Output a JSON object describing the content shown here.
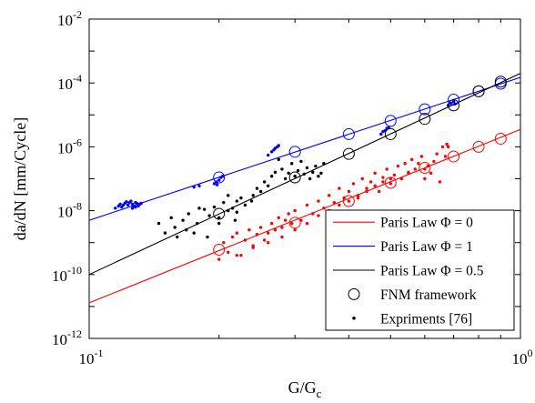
{
  "chart_data": {
    "type": "scatter",
    "xscale": "log",
    "yscale": "log",
    "xlim": [
      0.1,
      1
    ],
    "ylim": [
      1e-12,
      0.01
    ],
    "xlabel": {
      "main": "G/G",
      "sub": "c"
    },
    "ylabel": "da/dN [mm/Cycle]",
    "x_ticks": [
      {
        "value": 0.1,
        "base": "10",
        "exp": "-1"
      },
      {
        "value": 1,
        "base": "10",
        "exp": "0"
      }
    ],
    "y_ticks": [
      {
        "value": 1e-12,
        "base": "10",
        "exp": "-12"
      },
      {
        "value": 1e-10,
        "base": "10",
        "exp": "-10"
      },
      {
        "value": 1e-08,
        "base": "10",
        "exp": "-8"
      },
      {
        "value": 1e-06,
        "base": "10",
        "exp": "-6"
      },
      {
        "value": 0.0001,
        "base": "10",
        "exp": "-4"
      },
      {
        "value": 0.01,
        "base": "10",
        "exp": "-2"
      }
    ],
    "grid": false,
    "legend_position": "bottom-right",
    "colors": {
      "red": "#ff0000",
      "blue": "#0000ff",
      "black": "#000000"
    },
    "lines": [
      {
        "name": "Paris Law Φ = 0",
        "color": "#ff0000",
        "x": [
          0.1,
          1
        ],
        "y": [
          1.3e-11,
          3.5e-06
        ]
      },
      {
        "name": "Paris Law Φ = 1",
        "color": "#0000ff",
        "x": [
          0.1,
          1
        ],
        "y": [
          5e-09,
          0.00015
        ]
      },
      {
        "name": "Paris Law Φ = 0.5",
        "color": "#000000",
        "x": [
          0.1,
          1
        ],
        "y": [
          1e-10,
          0.0002
        ]
      }
    ],
    "fnm_points": [
      {
        "color": "#ff0000",
        "x": [
          0.2,
          0.3,
          0.4,
          0.5,
          0.6,
          0.7,
          0.8,
          0.9
        ],
        "y": [
          6e-10,
          4.2e-09,
          2e-08,
          7.5e-08,
          2.2e-07,
          5e-07,
          1e-06,
          1.8e-06
        ]
      },
      {
        "color": "#0000ff",
        "x": [
          0.2,
          0.3,
          0.4,
          0.5,
          0.6,
          0.7,
          0.8,
          0.9
        ],
        "y": [
          1.1e-07,
          7e-07,
          2.5e-06,
          6.5e-06,
          1.5e-05,
          3e-05,
          5.5e-05,
          9.5e-05
        ]
      },
      {
        "color": "#000000",
        "x": [
          0.2,
          0.3,
          0.4,
          0.5,
          0.6,
          0.7,
          0.8,
          0.9
        ],
        "y": [
          8e-09,
          1.1e-07,
          6e-07,
          2.5e-06,
          7.5e-06,
          2e-05,
          5.5e-05,
          0.00011
        ]
      }
    ],
    "experiment_points": [
      {
        "color": "#0000ff",
        "x": [
          0.115,
          0.117,
          0.118,
          0.12,
          0.121,
          0.122,
          0.124,
          0.125,
          0.126,
          0.127,
          0.128,
          0.129,
          0.13,
          0.131,
          0.132,
          0.126,
          0.128,
          0.13,
          0.123,
          0.119,
          0.175,
          0.18,
          0.195,
          0.197,
          0.2,
          0.202,
          0.204,
          0.198,
          0.265,
          0.268,
          0.27,
          0.273,
          0.275,
          0.26,
          0.475,
          0.48,
          0.485,
          0.49,
          0.495,
          0.68,
          0.69,
          0.7,
          0.705
        ],
        "y": [
          1.2e-08,
          1.4e-08,
          1.6e-08,
          1.5e-08,
          1.7e-08,
          1.9e-08,
          1.8e-08,
          2e-08,
          1.6e-08,
          1.4e-08,
          1.8e-08,
          1.7e-08,
          1.5e-08,
          1.6e-08,
          1.7e-08,
          1.2e-08,
          1.3e-08,
          1.4e-08,
          1.5e-08,
          1.3e-08,
          5.5e-08,
          6e-08,
          7e-08,
          8e-08,
          9e-08,
          1.1e-07,
          1.2e-07,
          6.5e-08,
          7e-07,
          8e-07,
          9e-07,
          1e-06,
          1.1e-06,
          5.5e-07,
          2.5e-06,
          3e-06,
          3.2e-06,
          3.8e-06,
          4e-06,
          2e-05,
          2.3e-05,
          2.6e-05,
          2.2e-05
        ]
      },
      {
        "color": "#000000",
        "x": [
          0.145,
          0.15,
          0.155,
          0.16,
          0.158,
          0.165,
          0.17,
          0.168,
          0.175,
          0.18,
          0.178,
          0.185,
          0.19,
          0.188,
          0.195,
          0.2,
          0.205,
          0.21,
          0.215,
          0.22,
          0.225,
          0.23,
          0.218,
          0.24,
          0.238,
          0.245,
          0.25,
          0.255,
          0.26,
          0.265,
          0.27,
          0.275,
          0.28,
          0.285,
          0.29,
          0.295,
          0.3,
          0.305,
          0.31,
          0.315,
          0.32,
          0.325,
          0.33,
          0.335,
          0.34,
          0.345,
          0.35,
          0.2,
          0.21,
          0.22
        ],
        "y": [
          4e-09,
          2e-09,
          6e-09,
          1.5e-09,
          3e-09,
          5e-09,
          8e-09,
          2.5e-09,
          2e-09,
          1.2e-08,
          4e-09,
          1.1e-08,
          7e-09,
          1.5e-09,
          1.3e-08,
          6e-09,
          1.8e-08,
          3e-08,
          1.2e-08,
          9e-09,
          2.5e-08,
          1.5e-08,
          5e-09,
          3e-08,
          2e-08,
          5e-08,
          4e-08,
          8e-08,
          6e-08,
          1.2e-07,
          1.6e-07,
          4e-07,
          2e-07,
          1e-07,
          1.5e-07,
          3e-07,
          1.2e-07,
          1.8e-07,
          3.5e-07,
          1.4e-07,
          2.2e-07,
          1e-07,
          1.6e-07,
          2.5e-07,
          1.2e-07,
          1.5e-07,
          3e-07,
          4e-09,
          1e-08,
          2e-08
        ]
      },
      {
        "color": "#ff0000",
        "x": [
          0.2,
          0.205,
          0.21,
          0.215,
          0.22,
          0.225,
          0.23,
          0.235,
          0.24,
          0.245,
          0.25,
          0.255,
          0.26,
          0.265,
          0.27,
          0.275,
          0.28,
          0.285,
          0.29,
          0.295,
          0.3,
          0.31,
          0.32,
          0.33,
          0.34,
          0.35,
          0.36,
          0.37,
          0.38,
          0.39,
          0.4,
          0.41,
          0.42,
          0.43,
          0.44,
          0.45,
          0.46,
          0.47,
          0.48,
          0.49,
          0.5,
          0.51,
          0.52,
          0.53,
          0.54,
          0.55,
          0.56,
          0.57,
          0.58,
          0.59,
          0.6,
          0.61,
          0.62,
          0.63,
          0.64,
          0.65,
          0.66,
          0.67,
          0.675,
          0.68,
          0.22,
          0.24,
          0.26,
          0.28,
          0.3,
          0.32,
          0.34,
          0.36,
          0.38,
          0.4,
          0.42,
          0.44,
          0.46,
          0.48,
          0.5,
          0.55,
          0.6
        ],
        "y": [
          3e-10,
          1e-09,
          5e-10,
          1.5e-09,
          2e-09,
          4e-10,
          1.2e-09,
          2.5e-09,
          8e-10,
          1.8e-09,
          3e-09,
          1.2e-09,
          2e-09,
          4e-09,
          2.5e-09,
          6e-09,
          3e-09,
          5e-09,
          8e-09,
          4e-09,
          1e-08,
          5e-09,
          1.5e-08,
          8e-09,
          2e-08,
          1.2e-08,
          3e-08,
          1.8e-08,
          5e-08,
          2.5e-08,
          4e-08,
          7e-08,
          3e-08,
          1e-07,
          5e-08,
          8e-08,
          1.5e-07,
          4e-08,
          1.1e-07,
          2e-07,
          7e-08,
          1.3e-07,
          2.5e-07,
          1e-07,
          3e-07,
          1.6e-07,
          4e-07,
          2e-07,
          3e-07,
          5e-07,
          1e-07,
          2.5e-07,
          1.5e-07,
          3.5e-07,
          6e-07,
          8e-08,
          1e-06,
          5e-07,
          1.2e-06,
          1e-06,
          4e-10,
          7e-10,
          1e-09,
          1.5e-09,
          2.5e-09,
          4e-09,
          7e-09,
          1e-08,
          1.5e-08,
          2e-08,
          2.5e-08,
          4e-08,
          6e-08,
          8e-08,
          1e-07,
          1.5e-07,
          2e-07
        ]
      }
    ],
    "legend": [
      {
        "label": "Paris Law Φ = 0",
        "kind": "line",
        "color": "#ff0000"
      },
      {
        "label": "Paris Law Φ = 1",
        "kind": "line",
        "color": "#0000ff"
      },
      {
        "label": "Paris Law Φ = 0.5",
        "kind": "line",
        "color": "#000000"
      },
      {
        "label": "FNM framework",
        "kind": "circle",
        "color": "#000000"
      },
      {
        "label": "Expriments [76]",
        "kind": "dot",
        "color": "#000000"
      }
    ]
  }
}
